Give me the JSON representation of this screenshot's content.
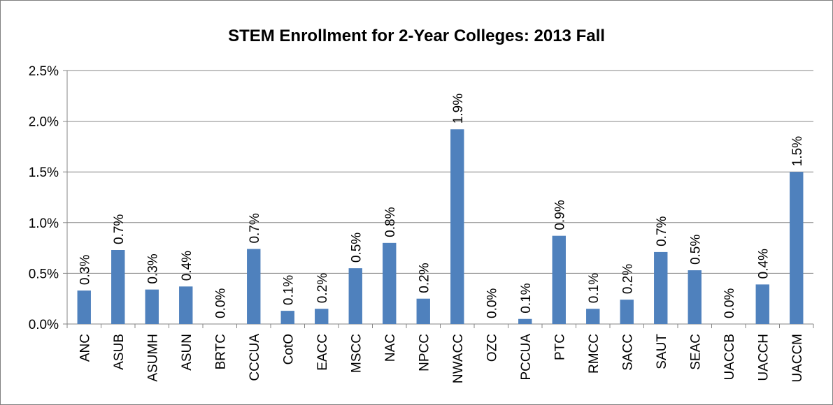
{
  "chart_data": {
    "type": "bar",
    "title": "STEM Enrollment for 2-Year Colleges: 2013 Fall",
    "xlabel": "",
    "ylabel": "",
    "categories": [
      "ANC",
      "ASUB",
      "ASUMH",
      "ASUN",
      "BRTC",
      "CCCUA",
      "CotO",
      "EACC",
      "MSCC",
      "NAC",
      "NPCC",
      "NWACC",
      "OZC",
      "PCCUA",
      "PTC",
      "RMCC",
      "SACC",
      "SAUT",
      "SEAC",
      "UACCB",
      "UACCH",
      "UACCM"
    ],
    "values": [
      0.33,
      0.73,
      0.34,
      0.37,
      0.0,
      0.74,
      0.13,
      0.15,
      0.55,
      0.8,
      0.25,
      1.92,
      0.0,
      0.05,
      0.87,
      0.15,
      0.24,
      0.71,
      0.53,
      0.0,
      0.39,
      1.5
    ],
    "data_labels": [
      "0.3%",
      "0.7%",
      "0.3%",
      "0.4%",
      "0.0%",
      "0.7%",
      "0.1%",
      "0.2%",
      "0.5%",
      "0.8%",
      "0.2%",
      "1.9%",
      "0.0%",
      "0.1%",
      "0.9%",
      "0.1%",
      "0.2%",
      "0.7%",
      "0.5%",
      "0.0%",
      "0.4%",
      "1.5%"
    ],
    "ylim": [
      0,
      2.5
    ],
    "yticks": [
      0,
      0.5,
      1.0,
      1.5,
      2.0,
      2.5
    ],
    "ytick_labels": [
      "0.0%",
      "0.5%",
      "1.0%",
      "1.5%",
      "2.0%",
      "2.5%"
    ],
    "grid": true,
    "legend": "none",
    "bar_color": "#4f81bd",
    "grid_color": "#868686"
  }
}
